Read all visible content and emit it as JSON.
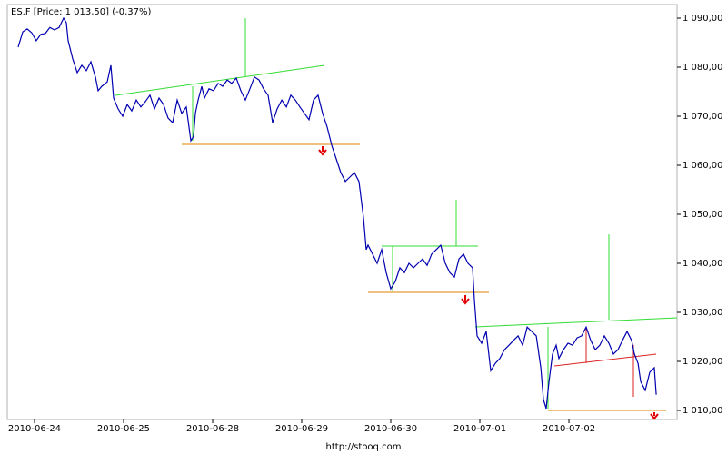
{
  "chart_data": {
    "type": "line",
    "title": "ES.F [Price: 1 013,50] (-0,37%)",
    "footer": "http://stooq.com",
    "xlim": [
      -0.306,
      7.214
    ],
    "ylim": [
      1008.15,
      1092.78
    ],
    "xticks": [
      {
        "value": 0,
        "label": "2010-06-24"
      },
      {
        "value": 1,
        "label": "2010-06-25"
      },
      {
        "value": 2,
        "label": "2010-06-28"
      },
      {
        "value": 3,
        "label": "2010-06-29"
      },
      {
        "value": 4,
        "label": "2010-06-30"
      },
      {
        "value": 5,
        "label": "2010-07-01"
      },
      {
        "value": 6,
        "label": "2010-07-02"
      }
    ],
    "yticks": [
      {
        "value": 1010,
        "label": "1 010,00"
      },
      {
        "value": 1020,
        "label": "1 020,00"
      },
      {
        "value": 1030,
        "label": "1 030,00"
      },
      {
        "value": 1040,
        "label": "1 040,00"
      },
      {
        "value": 1050,
        "label": "1 050,00"
      },
      {
        "value": 1060,
        "label": "1 060,00"
      },
      {
        "value": 1070,
        "label": "1 070,00"
      },
      {
        "value": 1080,
        "label": "1 080,00"
      },
      {
        "value": 1090,
        "label": "1 090,00"
      }
    ],
    "series": [
      {
        "color": "#0000b0",
        "x": [
          -0.184,
          -0.133,
          -0.082,
          -0.031,
          0.02,
          0.071,
          0.122,
          0.173,
          0.224,
          0.276,
          0.327,
          0.357,
          0.378,
          0.429,
          0.48,
          0.531,
          0.582,
          0.633,
          0.684,
          0.714,
          0.755,
          0.816,
          0.857,
          0.888,
          0.939,
          0.99,
          1.041,
          1.092,
          1.143,
          1.194,
          1.245,
          1.296,
          1.347,
          1.398,
          1.449,
          1.5,
          1.551,
          1.602,
          1.653,
          1.704,
          1.755,
          1.786,
          1.806,
          1.837,
          1.878,
          1.908,
          1.959,
          2.01,
          2.061,
          2.112,
          2.163,
          2.214,
          2.265,
          2.316,
          2.367,
          2.418,
          2.469,
          2.52,
          2.571,
          2.622,
          2.673,
          2.724,
          2.776,
          2.827,
          2.878,
          2.929,
          2.98,
          3.031,
          3.082,
          3.133,
          3.184,
          3.235,
          3.286,
          3.337,
          3.388,
          3.439,
          3.49,
          3.541,
          3.592,
          3.643,
          3.694,
          3.724,
          3.745,
          3.796,
          3.847,
          3.898,
          3.949,
          4.0,
          4.051,
          4.102,
          4.153,
          4.204,
          4.255,
          4.306,
          4.357,
          4.408,
          4.459,
          4.51,
          4.561,
          4.612,
          4.663,
          4.714,
          4.765,
          4.816,
          4.867,
          4.918,
          4.939,
          4.969,
          5.02,
          5.071,
          5.122,
          5.173,
          5.224,
          5.276,
          5.327,
          5.378,
          5.429,
          5.48,
          5.531,
          5.582,
          5.633,
          5.684,
          5.714,
          5.745,
          5.776,
          5.816,
          5.857,
          5.888,
          5.939,
          5.99,
          6.041,
          6.092,
          6.143,
          6.194,
          6.245,
          6.296,
          6.347,
          6.398,
          6.449,
          6.5,
          6.551,
          6.602,
          6.653,
          6.704,
          6.735,
          6.776,
          6.806,
          6.857,
          6.908,
          6.959,
          6.98
        ],
        "values": [
          1084.1,
          1087.2,
          1087.8,
          1087.0,
          1085.4,
          1086.7,
          1086.9,
          1088.1,
          1087.6,
          1088.1,
          1090.0,
          1089.1,
          1085.4,
          1081.7,
          1078.9,
          1080.4,
          1079.3,
          1081.1,
          1078.0,
          1075.2,
          1076.1,
          1077.0,
          1080.4,
          1073.7,
          1071.5,
          1070.0,
          1072.4,
          1071.1,
          1073.3,
          1071.9,
          1073.0,
          1074.3,
          1071.5,
          1073.7,
          1072.4,
          1069.6,
          1068.7,
          1073.3,
          1070.6,
          1071.9,
          1065.0,
          1065.9,
          1070.6,
          1073.3,
          1076.1,
          1073.7,
          1075.6,
          1075.2,
          1076.7,
          1076.1,
          1077.4,
          1076.7,
          1077.8,
          1075.2,
          1073.3,
          1075.6,
          1078.0,
          1077.4,
          1075.6,
          1074.3,
          1068.7,
          1071.5,
          1073.3,
          1071.9,
          1074.3,
          1073.3,
          1071.9,
          1070.6,
          1069.3,
          1073.3,
          1074.3,
          1070.6,
          1067.8,
          1064.1,
          1061.3,
          1058.5,
          1056.7,
          1057.6,
          1058.5,
          1056.7,
          1049.3,
          1042.8,
          1043.7,
          1041.9,
          1040.0,
          1042.8,
          1038.1,
          1034.8,
          1036.3,
          1039.1,
          1038.1,
          1040.0,
          1039.1,
          1040.0,
          1040.9,
          1039.6,
          1041.9,
          1042.8,
          1043.7,
          1040.0,
          1038.1,
          1037.2,
          1040.9,
          1041.9,
          1040.0,
          1039.1,
          1032.6,
          1025.2,
          1023.7,
          1026.1,
          1018.1,
          1019.6,
          1020.6,
          1022.4,
          1023.3,
          1024.3,
          1025.2,
          1023.3,
          1027.0,
          1026.1,
          1025.2,
          1018.7,
          1012.2,
          1010.4,
          1015.9,
          1021.5,
          1023.3,
          1020.6,
          1022.4,
          1023.7,
          1023.3,
          1024.8,
          1025.2,
          1027.0,
          1024.3,
          1022.4,
          1023.3,
          1025.2,
          1023.7,
          1021.5,
          1022.4,
          1024.3,
          1026.1,
          1024.3,
          1021.5,
          1019.6,
          1015.9,
          1014.1,
          1017.8,
          1018.7,
          1013.2
        ]
      }
    ]
  }
}
